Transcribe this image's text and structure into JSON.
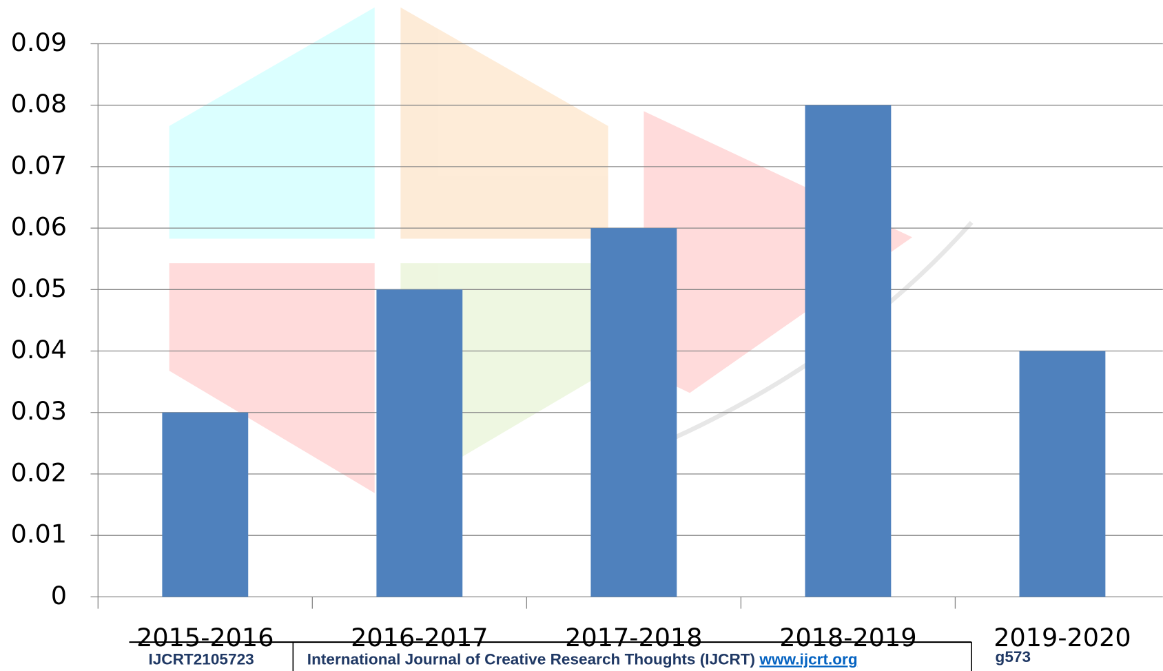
{
  "chart_data": {
    "type": "bar",
    "categories": [
      "2015-2016",
      "2016-2017",
      "2017-2018",
      "2018-2019",
      "2019-2020"
    ],
    "values": [
      0.03,
      0.05,
      0.06,
      0.08,
      0.04
    ],
    "color": "#4f81bd",
    "ylim": [
      0,
      0.09
    ],
    "yticks": [
      0,
      0.01,
      0.02,
      0.03,
      0.04,
      0.05,
      0.06,
      0.07,
      0.08,
      0.09
    ],
    "grid": true
  },
  "footer": {
    "id": "IJCRT2105723",
    "journal": "International Journal of Creative Research Thoughts (IJCRT)",
    "url": "www.ijcrt.org",
    "page": "g573"
  }
}
